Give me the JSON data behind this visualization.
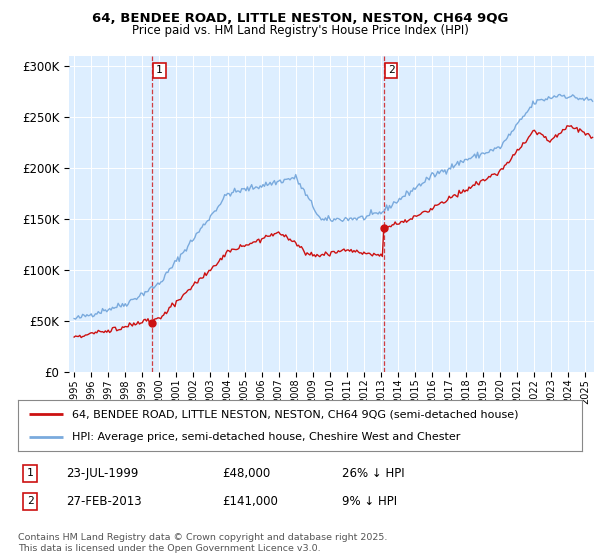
{
  "title_line1": "64, BENDEE ROAD, LITTLE NESTON, NESTON, CH64 9QG",
  "title_line2": "Price paid vs. HM Land Registry's House Price Index (HPI)",
  "legend_line1": "64, BENDEE ROAD, LITTLE NESTON, NESTON, CH64 9QG (semi-detached house)",
  "legend_line2": "HPI: Average price, semi-detached house, Cheshire West and Chester",
  "annotation_text": "Contains HM Land Registry data © Crown copyright and database right 2025.\nThis data is licensed under the Open Government Licence v3.0.",
  "sale1_date": "23-JUL-1999",
  "sale1_price": "£48,000",
  "sale1_hpi": "26% ↓ HPI",
  "sale2_date": "27-FEB-2013",
  "sale2_price": "£141,000",
  "sale2_hpi": "9% ↓ HPI",
  "vline1_x": 1999.56,
  "vline2_x": 2013.16,
  "sale1_marker_x": 1999.56,
  "sale1_marker_y": 48000,
  "sale2_marker_x": 2013.16,
  "sale2_marker_y": 141000,
  "ylim": [
    0,
    310000
  ],
  "xlim_start": 1994.7,
  "xlim_end": 2025.5,
  "plot_bg_color": "#ddeeff",
  "hpi_color": "#7aaadd",
  "price_color": "#cc1111",
  "vline_color": "#cc1111",
  "grid_color": "#ffffff",
  "yticks": [
    0,
    50000,
    100000,
    150000,
    200000,
    250000,
    300000
  ],
  "ytick_labels": [
    "£0",
    "£50K",
    "£100K",
    "£150K",
    "£200K",
    "£250K",
    "£300K"
  ],
  "xtick_years": [
    1995,
    1996,
    1997,
    1998,
    1999,
    2000,
    2001,
    2002,
    2003,
    2004,
    2005,
    2006,
    2007,
    2008,
    2009,
    2010,
    2011,
    2012,
    2013,
    2014,
    2015,
    2016,
    2017,
    2018,
    2019,
    2020,
    2021,
    2022,
    2023,
    2024,
    2025
  ]
}
